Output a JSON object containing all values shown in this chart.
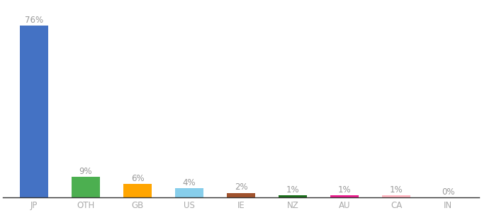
{
  "categories": [
    "JP",
    "OTH",
    "GB",
    "US",
    "IE",
    "NZ",
    "AU",
    "CA",
    "IN"
  ],
  "values": [
    76,
    9,
    6,
    4,
    2,
    1,
    1,
    1,
    0
  ],
  "labels": [
    "76%",
    "9%",
    "6%",
    "4%",
    "2%",
    "1%",
    "1%",
    "1%",
    "0%"
  ],
  "bar_colors": [
    "#4472c4",
    "#4caf50",
    "#ffa500",
    "#87ceeb",
    "#a0522d",
    "#1a6e1a",
    "#e91e8c",
    "#ffb6c1",
    "#dddddd"
  ],
  "background_color": "#ffffff",
  "label_color": "#999999",
  "label_fontsize": 8.5,
  "tick_fontsize": 8.5,
  "tick_color": "#aaaaaa",
  "ylim": [
    0,
    86
  ],
  "bar_width": 0.55,
  "figsize": [
    6.8,
    3.0
  ],
  "dpi": 100
}
